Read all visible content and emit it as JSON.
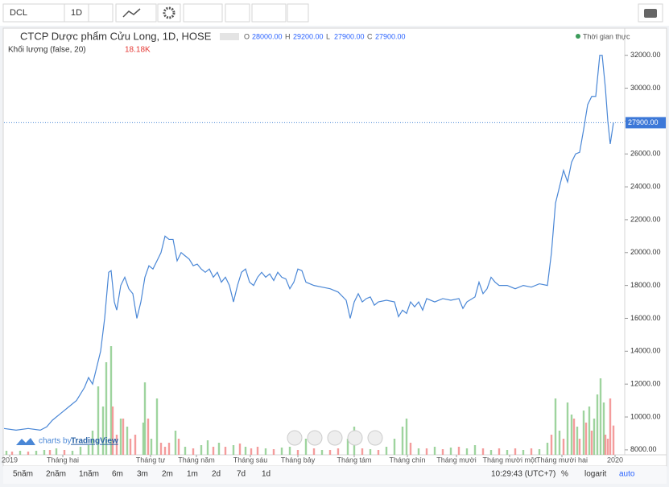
{
  "toolbar": {
    "symbol": "DCL",
    "interval": "1D"
  },
  "chart_data": {
    "type": "line",
    "title": "CTCP Dược phẩm Cửu Long, 1D, HOSE",
    "ohlc": [
      {
        "key": "O",
        "value": "28000.00"
      },
      {
        "key": "H",
        "value": "29200.00"
      },
      {
        "key": "L",
        "value": "27900.00"
      },
      {
        "key": "C",
        "value": "27900.00"
      }
    ],
    "status": "Thời gian thực",
    "volume_title": "Khối lượng (false, 20)",
    "volume_last": "18.18K",
    "x": [
      0,
      15,
      30,
      45,
      53,
      60,
      70,
      80,
      90,
      100,
      105,
      110,
      115,
      120,
      125,
      130,
      133,
      137,
      140,
      145,
      150,
      155,
      160,
      165,
      170,
      175,
      180,
      185,
      190,
      195,
      200,
      205,
      210,
      215,
      220,
      225,
      230,
      235,
      240,
      245,
      250,
      255,
      260,
      265,
      270,
      275,
      280,
      285,
      290,
      295,
      300,
      305,
      310,
      315,
      320,
      325,
      330,
      335,
      340,
      345,
      350,
      355,
      360,
      365,
      370,
      375,
      385,
      395,
      405,
      415,
      425,
      430,
      435,
      440,
      445,
      450,
      455,
      460,
      465,
      475,
      485,
      490,
      495,
      500,
      505,
      510,
      515,
      520,
      525,
      535,
      545,
      555,
      565,
      570,
      575,
      585,
      590,
      595,
      600,
      605,
      610,
      615,
      625,
      635,
      645,
      655,
      665,
      675,
      680,
      685,
      690,
      695,
      700,
      705,
      710,
      715,
      720,
      725,
      730,
      735,
      740,
      743,
      747,
      750,
      753,
      757
    ],
    "series": [
      {
        "color": "#4a87d6",
        "values": [
          9300,
          9200,
          9300,
          9200,
          9400,
          9800,
          10200,
          10600,
          11000,
          11800,
          12400,
          12000,
          13000,
          14000,
          16000,
          18800,
          18900,
          17000,
          16500,
          18000,
          18500,
          17800,
          17500,
          16000,
          17000,
          18500,
          19200,
          19000,
          19500,
          20000,
          21000,
          20800,
          20800,
          19500,
          20000,
          19800,
          19600,
          19200,
          19300,
          19000,
          18800,
          19000,
          18500,
          18800,
          18200,
          18500,
          18000,
          17000,
          18000,
          18800,
          19000,
          18200,
          18000,
          18500,
          18800,
          18500,
          18700,
          18300,
          18800,
          18500,
          18400,
          17800,
          18200,
          19000,
          18900,
          18200,
          18000,
          17900,
          17800,
          17600,
          17100,
          16000,
          17000,
          17500,
          17000,
          17200,
          17300,
          16800,
          17000,
          17100,
          17000,
          16100,
          16500,
          16300,
          17000,
          16700,
          17000,
          16500,
          17200,
          17000,
          17200,
          17100,
          17200,
          16600,
          17000,
          17300,
          18200,
          17500,
          17800,
          18500,
          18200,
          18000,
          18000,
          17800,
          18000,
          17900,
          18100,
          18000,
          20000,
          23000,
          24000,
          25000,
          24300,
          25500,
          26000,
          26100,
          27500,
          29000,
          29500,
          29500,
          32000,
          32000,
          30000,
          28000,
          26600,
          27900
        ]
      }
    ],
    "last_price": 27900,
    "last_price_label": "27900.00",
    "xlim": [
      0,
      770
    ],
    "xticks": [
      {
        "value": 7,
        "label": "2019"
      },
      {
        "value": 73,
        "label": "Tháng hai"
      },
      {
        "value": 182,
        "label": "Tháng tư"
      },
      {
        "value": 239,
        "label": "Tháng năm"
      },
      {
        "value": 306,
        "label": "Tháng sáu"
      },
      {
        "value": 365,
        "label": "Tháng bảy"
      },
      {
        "value": 435,
        "label": "Tháng tám"
      },
      {
        "value": 501,
        "label": "Tháng chín"
      },
      {
        "value": 562,
        "label": "Tháng mười"
      },
      {
        "value": 628,
        "label": "Tháng mười một"
      },
      {
        "value": 693,
        "label": "Tháng mười hai"
      },
      {
        "value": 759,
        "label": "2020"
      }
    ],
    "ylim": [
      7700,
      33600
    ],
    "yticks": [
      {
        "value": 8000,
        "label": "8000.00"
      },
      {
        "value": 10000,
        "label": "10000.00"
      },
      {
        "value": 12000,
        "label": "12000.00"
      },
      {
        "value": 14000,
        "label": "14000.00"
      },
      {
        "value": 16000,
        "label": "16000.00"
      },
      {
        "value": 18000,
        "label": "18000.00"
      },
      {
        "value": 20000,
        "label": "20000.00"
      },
      {
        "value": 22000,
        "label": "22000.00"
      },
      {
        "value": 24000,
        "label": "24000.00"
      },
      {
        "value": 26000,
        "label": "26000.00"
      },
      {
        "value": 28000,
        "label": "28000.00"
      },
      {
        "value": 30000,
        "label": "30000.00"
      },
      {
        "value": 32000,
        "label": "32000.00"
      }
    ],
    "volume": {
      "ylim": [
        0,
        264500
      ],
      "up": {
        "color": "#8dcc8d",
        "x": [
          3,
          20,
          40,
          50,
          65,
          85,
          95,
          105,
          110,
          117,
          123,
          127,
          133,
          145,
          153,
          173,
          175,
          183,
          190,
          213,
          225,
          245,
          253,
          267,
          285,
          300,
          325,
          345,
          355,
          375,
          395,
          427,
          435,
          455,
          475,
          485,
          495,
          500,
          515,
          535,
          555,
          575,
          585,
          605,
          625,
          645,
          665,
          675,
          685,
          690,
          700,
          705,
          712,
          720,
          727,
          733,
          737,
          741,
          745
        ],
        "values": [
          2500,
          2500,
          2500,
          3000,
          4000,
          2500,
          5000,
          6000,
          15000,
          42500,
          30000,
          57500,
          67500,
          22500,
          17500,
          20000,
          45000,
          10000,
          35000,
          15000,
          5000,
          6000,
          9000,
          7500,
          6000,
          5000,
          4000,
          4500,
          5000,
          10000,
          3000,
          10000,
          17500,
          3500,
          5000,
          10000,
          17500,
          22500,
          4000,
          5000,
          4500,
          4000,
          6000,
          3000,
          3000,
          3000,
          3500,
          7500,
          35000,
          15000,
          32500,
          25000,
          17500,
          27500,
          30000,
          22500,
          37500,
          47500,
          32500
        ]
      },
      "down": {
        "color": "#f28b8b",
        "x": [
          10,
          30,
          57,
          75,
          135,
          140,
          148,
          157,
          163,
          179,
          195,
          200,
          205,
          217,
          235,
          260,
          275,
          293,
          307,
          315,
          335,
          365,
          385,
          405,
          415,
          445,
          465,
          505,
          525,
          545,
          565,
          595,
          615,
          635,
          655,
          680,
          695,
          708,
          715,
          723,
          730,
          747,
          750,
          753,
          757
        ],
        "values": [
          2000,
          2000,
          3000,
          3000,
          30000,
          12500,
          22500,
          10000,
          12500,
          22500,
          7500,
          5000,
          7500,
          10000,
          4000,
          5000,
          5000,
          7000,
          4000,
          5000,
          3500,
          3000,
          4000,
          3000,
          4000,
          4000,
          3000,
          7500,
          4000,
          3500,
          5000,
          4000,
          4000,
          4000,
          4000,
          12500,
          10000,
          22500,
          10000,
          20000,
          15000,
          12500,
          10000,
          35000,
          18180
        ]
      }
    }
  },
  "footer": {
    "ranges": [
      "5năm",
      "2năm",
      "1năm",
      "6m",
      "3m",
      "2m",
      "1m",
      "2d",
      "7d",
      "1d"
    ],
    "time": "10:29:43 (UTC+7)",
    "percent": "%",
    "log": "logarit",
    "auto": "auto"
  },
  "watermark": {
    "prefix": "charts by",
    "brand": "TradingView"
  }
}
